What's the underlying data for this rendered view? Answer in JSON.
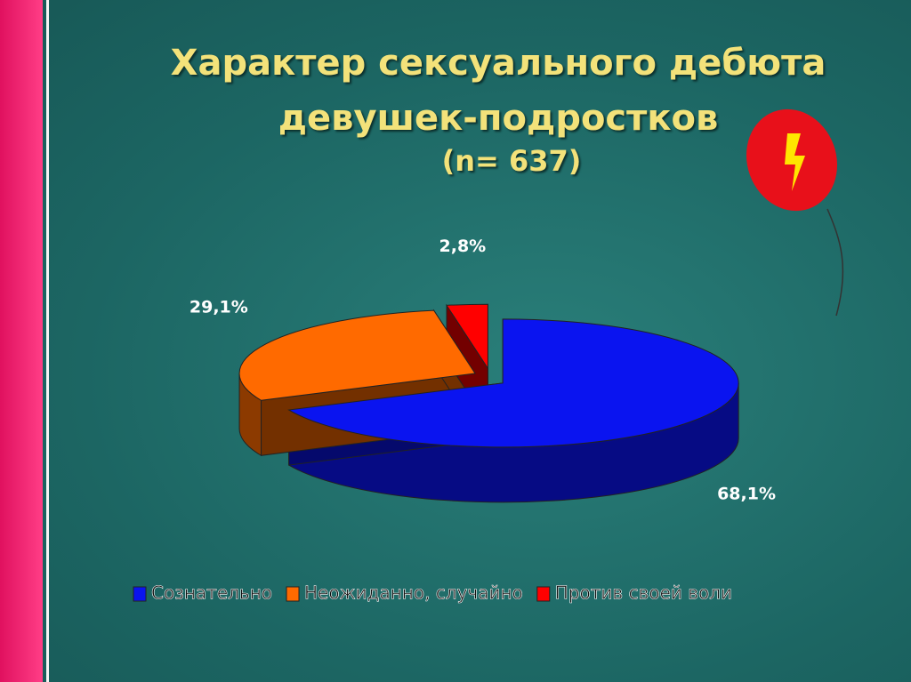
{
  "chart_data": {
    "type": "pie",
    "title": "Характер сексуального дебюта девушек-подростков",
    "subtitle": "(n= 637)",
    "categories": [
      "Сознательно",
      "Неожиданно, случайно",
      "Против своей воли"
    ],
    "values": [
      68.1,
      29.1,
      2.8
    ],
    "value_labels": [
      "68,1%",
      "29,1%",
      "2,8%"
    ],
    "colors": [
      "#0a14f0",
      "#ff6a00",
      "#ff0000"
    ],
    "legend": "bottom"
  }
}
